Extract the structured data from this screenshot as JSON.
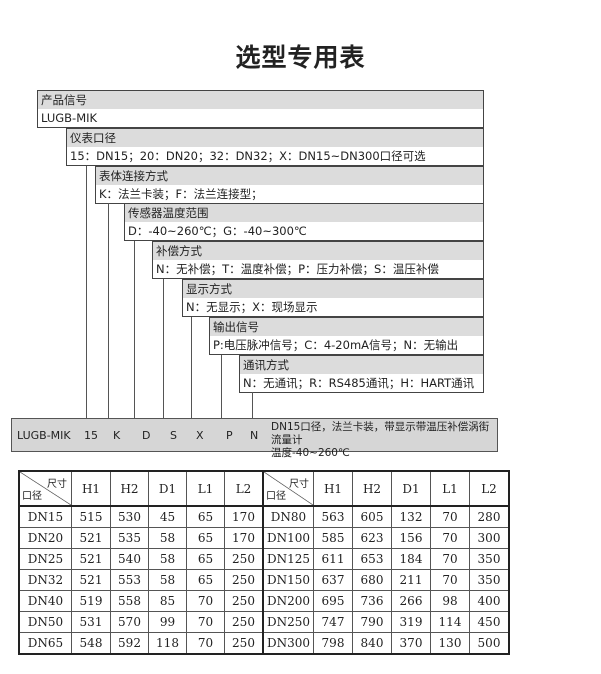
{
  "title": "选型专用表",
  "selector": [
    {
      "header": "产品信号",
      "value": "LUGB-MIK"
    },
    {
      "header": "仪表口径",
      "value": "15：DN15；20：DN20；32：DN32；X：DN15~DN300口径可选"
    },
    {
      "header": "表体连接方式",
      "value": "K：法兰卡装；F：法兰连接型；"
    },
    {
      "header": "传感器温度范围",
      "value": "D：-40~260℃；G：-40~300℃"
    },
    {
      "header": "补偿方式",
      "value": "N：无补偿；T：温度补偿；P：压力补偿；S：温压补偿"
    },
    {
      "header": "显示方式",
      "value": "N：无显示；X：现场显示"
    },
    {
      "header": "输出信号",
      "value": "P:电压脉冲信号；C：4-20mA信号；N：无输出"
    },
    {
      "header": "通讯方式",
      "value": "N：无通讯；R：RS485通讯；H：HART通讯"
    }
  ],
  "example": {
    "codes": [
      "LUGB-MIK",
      "15",
      "K",
      "D",
      "S",
      "X",
      "P",
      "N"
    ],
    "description_line1": "DN15口径，法兰卡装，带显示带温压补偿涡街流量计",
    "description_line2": "温度-40~260℃"
  },
  "table": {
    "corner_top": "尺寸",
    "corner_bottom": "口径",
    "columns": [
      "H1",
      "H2",
      "D1",
      "L1",
      "L2"
    ],
    "left_rows": [
      [
        "DN15",
        "515",
        "530",
        "45",
        "65",
        "170"
      ],
      [
        "DN20",
        "521",
        "535",
        "58",
        "65",
        "170"
      ],
      [
        "DN25",
        "521",
        "540",
        "58",
        "65",
        "250"
      ],
      [
        "DN32",
        "521",
        "553",
        "58",
        "65",
        "250"
      ],
      [
        "DN40",
        "519",
        "558",
        "85",
        "70",
        "250"
      ],
      [
        "DN50",
        "531",
        "570",
        "99",
        "70",
        "250"
      ],
      [
        "DN65",
        "548",
        "592",
        "118",
        "70",
        "250"
      ]
    ],
    "right_rows": [
      [
        "DN80",
        "563",
        "605",
        "132",
        "70",
        "280"
      ],
      [
        "DN100",
        "585",
        "623",
        "156",
        "70",
        "300"
      ],
      [
        "DN125",
        "611",
        "653",
        "184",
        "70",
        "350"
      ],
      [
        "DN150",
        "637",
        "680",
        "211",
        "70",
        "350"
      ],
      [
        "DN200",
        "695",
        "736",
        "266",
        "98",
        "400"
      ],
      [
        "DN250",
        "747",
        "790",
        "319",
        "114",
        "450"
      ],
      [
        "DN300",
        "798",
        "840",
        "370",
        "130",
        "500"
      ]
    ]
  }
}
